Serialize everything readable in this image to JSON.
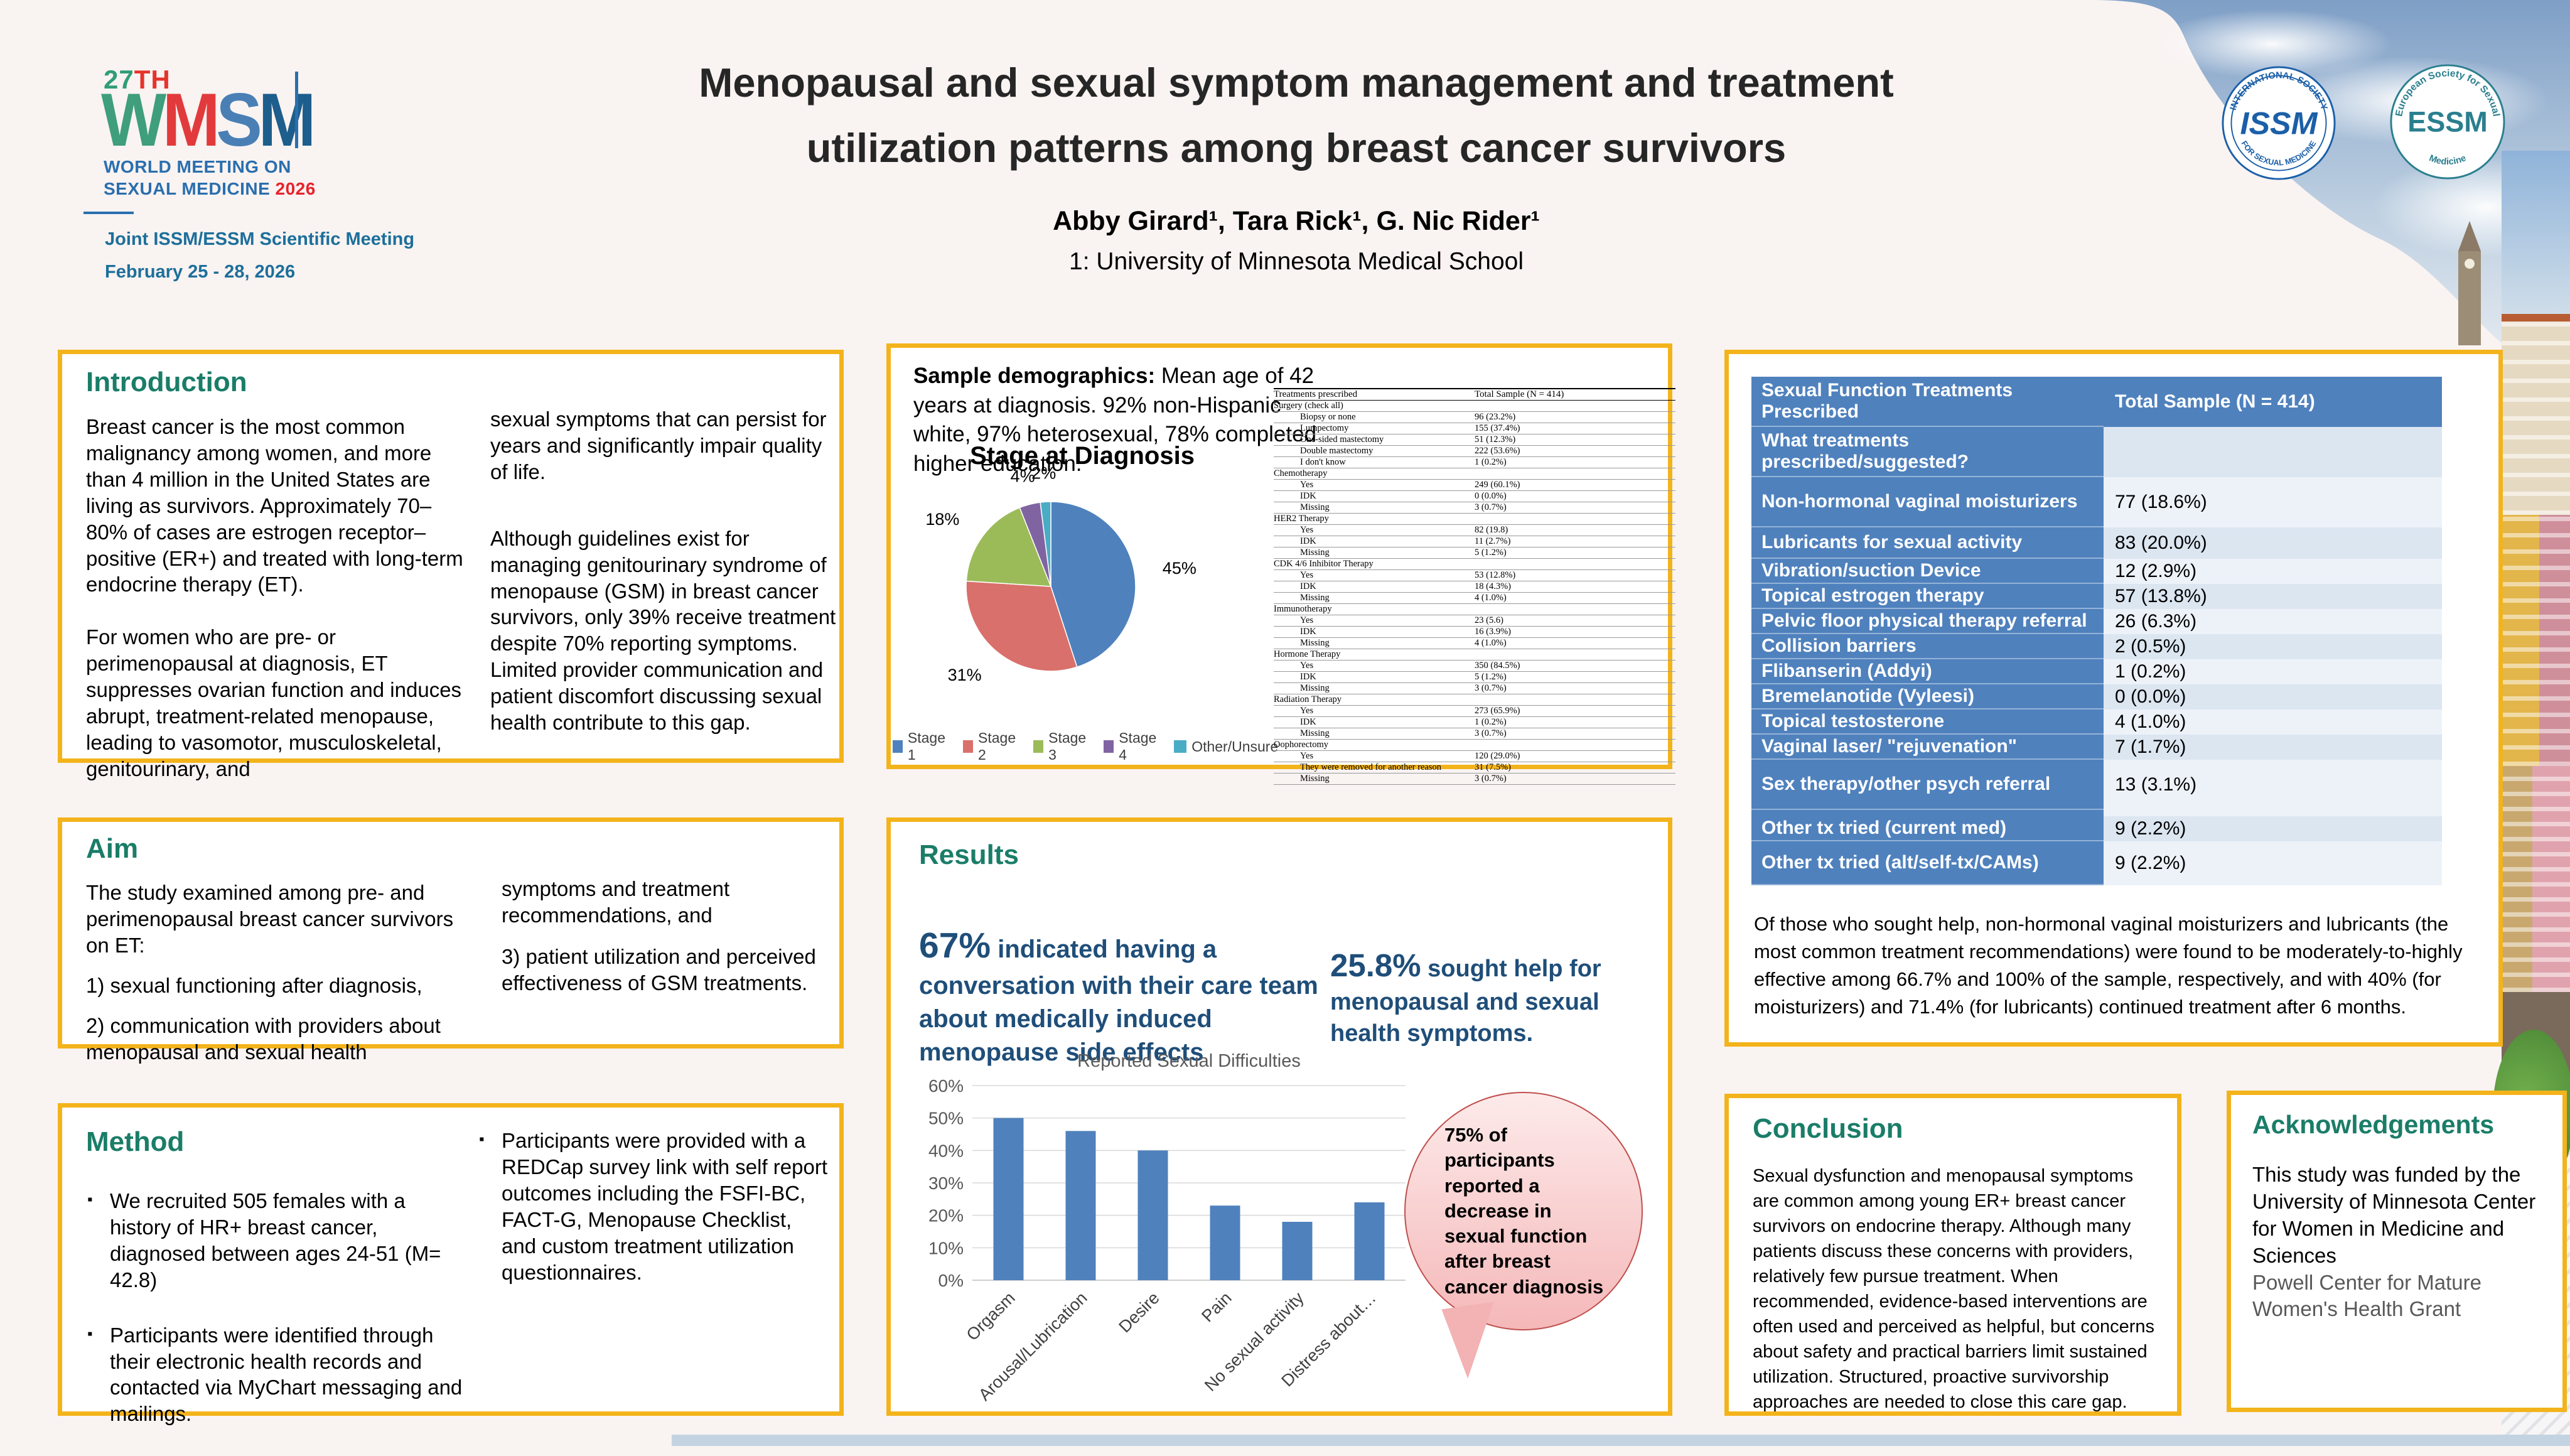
{
  "header": {
    "logo": {
      "edition_number": "27",
      "edition_suffix": "TH",
      "letters": [
        {
          "ch": "W",
          "color": "#3f9e7c"
        },
        {
          "ch": "M",
          "color": "#e23a3c"
        },
        {
          "ch": "S",
          "color": "#4a7fb5"
        },
        {
          "ch": "M",
          "color": "#1d5e8c"
        }
      ],
      "line1": "WORLD MEETING ON",
      "line2": "SEXUAL MEDICINE",
      "year": "2026",
      "meeting": "Joint ISSM/ESSM Scientific Meeting",
      "dates": "February 25 - 28, 2026"
    },
    "title_line1": "Menopausal and sexual symptom management and treatment",
    "title_line2": "utilization patterns among breast cancer survivors",
    "authors": "Abby Girard¹, Tara Rick¹, G. Nic Rider¹",
    "affiliation": "1: University of Minnesota Medical School",
    "issm_logo": {
      "arc_top": "INTERNATIONAL SOCIETY",
      "arc_bottom": "FOR SEXUAL MEDICINE",
      "center": "ISSM"
    },
    "essm_logo": {
      "arc_top": "European Society for Sexual",
      "arc_bottom": "Medicine",
      "center": "ESSM"
    }
  },
  "introduction": {
    "heading": "Introduction",
    "col1": [
      "Breast cancer is the most common malignancy among women, and more than 4 million in the United States are living as survivors. Approximately 70–80% of cases are estrogen receptor–positive (ER+) and treated with long-term endocrine therapy (ET).",
      "For women who are pre- or perimenopausal at diagnosis, ET suppresses ovarian function and induces abrupt, treatment-related menopause, leading to vasomotor, musculoskeletal, genitourinary, and"
    ],
    "col2": [
      "sexual symptoms that can persist for years and significantly impair quality of life.",
      "Although guidelines exist for managing genitourinary syndrome of menopause (GSM) in breast cancer survivors, only 39% receive treatment despite 70% reporting symptoms. Limited provider communication and patient discomfort discussing sexual health contribute to this gap."
    ]
  },
  "aim": {
    "heading": "Aim",
    "col1": [
      "The study examined among pre- and perimenopausal breast cancer survivors on ET:",
      "1)  sexual functioning after diagnosis,",
      "2) communication with providers about menopausal and sexual health"
    ],
    "col2": [
      "symptoms and treatment recommendations, and",
      "3) patient utilization and perceived effectiveness of GSM treatments."
    ]
  },
  "method": {
    "heading": "Method",
    "col1_bullets": [
      "We recruited 505 females with a history of HR+ breast cancer, diagnosed between ages 24-51 (M= 42.8)",
      "Participants were identified through their electronic health records and contacted via MyChart messaging and mailings."
    ],
    "col2_bullets": [
      "Participants were provided with a REDCap survey link with self report outcomes including the FSFI-BC, FACT-G, Menopause Checklist, and custom treatment utilization questionnaires."
    ]
  },
  "demographics": {
    "intro_bold": "Sample demographics:",
    "intro_rest": " Mean age of 42 years at diagnosis. 92% non-Hispanic white, 97% heterosexual, 78% completed higher education.",
    "table": {
      "headers": [
        "Treatments prescribed",
        "Total Sample (N = 414)"
      ],
      "rows": [
        {
          "label": "Surgery (check all)",
          "value": "",
          "indent": 0
        },
        {
          "label": "Biopsy or none",
          "value": "96 (23.2%)",
          "indent": 1
        },
        {
          "label": "Lumpectomy",
          "value": "155 (37.4%)",
          "indent": 1
        },
        {
          "label": "One-sided mastectomy",
          "value": "51 (12.3%)",
          "indent": 1
        },
        {
          "label": "Double mastectomy",
          "value": "222 (53.6%)",
          "indent": 1
        },
        {
          "label": "I don't know",
          "value": "1 (0.2%)",
          "indent": 1
        },
        {
          "label": "Chemotherapy",
          "value": "",
          "indent": 0
        },
        {
          "label": "Yes",
          "value": "249 (60.1%)",
          "indent": 1
        },
        {
          "label": "IDK",
          "value": "0 (0.0%)",
          "indent": 1
        },
        {
          "label": "Missing",
          "value": "3 (0.7%)",
          "indent": 1
        },
        {
          "label": "HER2 Therapy",
          "value": "",
          "indent": 0
        },
        {
          "label": "Yes",
          "value": "82 (19.8)",
          "indent": 1
        },
        {
          "label": "IDK",
          "value": "11 (2.7%)",
          "indent": 1
        },
        {
          "label": "Missing",
          "value": "5 (1.2%)",
          "indent": 1
        },
        {
          "label": "CDK 4/6 Inhibitor Therapy",
          "value": "",
          "indent": 0
        },
        {
          "label": "Yes",
          "value": "53 (12.8%)",
          "indent": 1
        },
        {
          "label": "IDK",
          "value": "18 (4.3%)",
          "indent": 1
        },
        {
          "label": "Missing",
          "value": "4 (1.0%)",
          "indent": 1
        },
        {
          "label": "Immunotherapy",
          "value": "",
          "indent": 0
        },
        {
          "label": "Yes",
          "value": "23 (5.6)",
          "indent": 1
        },
        {
          "label": "IDK",
          "value": "16 (3.9%)",
          "indent": 1
        },
        {
          "label": "Missing",
          "value": "4 (1.0%)",
          "indent": 1
        },
        {
          "label": "Hormone Therapy",
          "value": "",
          "indent": 0
        },
        {
          "label": "Yes",
          "value": "350 (84.5%)",
          "indent": 1
        },
        {
          "label": "IDK",
          "value": "5 (1.2%)",
          "indent": 1
        },
        {
          "label": "Missing",
          "value": "3 (0.7%)",
          "indent": 1
        },
        {
          "label": "Radiation Therapy",
          "value": "",
          "indent": 0
        },
        {
          "label": "Yes",
          "value": "273 (65.9%)",
          "indent": 1
        },
        {
          "label": "IDK",
          "value": "1 (0.2%)",
          "indent": 1
        },
        {
          "label": "Missing",
          "value": "3 (0.7%)",
          "indent": 1
        },
        {
          "label": "Oophorectomy",
          "value": "",
          "indent": 0
        },
        {
          "label": "Yes",
          "value": "120 (29.0%)",
          "indent": 1
        },
        {
          "label": "They were removed for another reason",
          "value": "31 (7.5%)",
          "indent": 1
        },
        {
          "label": "Missing",
          "value": "3 (0.7%)",
          "indent": 1
        }
      ]
    }
  },
  "results": {
    "heading": "Results",
    "stat1_value": "67%",
    "stat1_text": " indicated having a conversation with their care team about medically induced menopause side effects",
    "stat2_value": "25.8%",
    "stat2_text": " sought help for menopausal and sexual health symptoms.",
    "bubble_text": "75% of participants reported a decrease in sexual function after breast cancer diagnosis"
  },
  "treatments": {
    "table": {
      "headers": [
        "Sexual Function Treatments Prescribed",
        "Total Sample (N = 414)"
      ],
      "rows": [
        {
          "label": "What treatments prescribed/suggested?",
          "value": ""
        },
        {
          "label": "Non-hormonal vaginal moisturizers",
          "value": "77 (18.6%)"
        },
        {
          "label": "Lubricants for sexual activity",
          "value": "83 (20.0%)"
        },
        {
          "label": "Vibration/suction Device",
          "value": "12 (2.9%)"
        },
        {
          "label": "Topical estrogen therapy",
          "value": "57 (13.8%)"
        },
        {
          "label": "Pelvic floor physical therapy referral",
          "value": "26 (6.3%)"
        },
        {
          "label": "Collision barriers",
          "value": "2 (0.5%)"
        },
        {
          "label": "Flibanserin (Addyi)",
          "value": "1 (0.2%)"
        },
        {
          "label": "Bremelanotide (Vyleesi)",
          "value": "0 (0.0%)"
        },
        {
          "label": "Topical testosterone",
          "value": "4 (1.0%)"
        },
        {
          "label": "Vaginal laser/ \"rejuvenation\"",
          "value": "7 (1.7%)"
        },
        {
          "label": "Sex therapy/other psych referral",
          "value": "13 (3.1%)"
        },
        {
          "label": "Other tx tried (current med)",
          "value": "9 (2.2%)"
        },
        {
          "label": "Other tx tried (alt/self-tx/CAMs)",
          "value": "9 (2.2%)"
        }
      ]
    },
    "paragraph": "Of those who sought help, non-hormonal vaginal moisturizers and lubricants (the most common treatment recommendations) were found to be moderately-to-highly effective among 66.7% and 100% of the sample, respectively, and with 40% (for moisturizers) and 71.4% (for lubricants) continued treatment after 6 months."
  },
  "conclusion": {
    "heading": "Conclusion",
    "body": "Sexual dysfunction and menopausal symptoms are common among young ER+ breast cancer survivors on endocrine therapy. Although many patients discuss these concerns with providers, relatively few pursue treatment. When recommended, evidence-based interventions are often used and perceived as helpful, but concerns about safety and practical barriers limit sustained utilization. Structured, proactive survivorship approaches are needed to close this care gap."
  },
  "acknowledgements": {
    "heading": "Acknowledgements",
    "body_black": "This study was funded by the University of Minnesota Center for Women in Medicine and Sciences",
    "body_gray": "Powell Center for Mature Women's Health Grant"
  },
  "colors": {
    "accent_gold": "#F3B31B",
    "heading_green": "#1A7D68",
    "navy": "#1F4E79",
    "table_blue": "#4F81BD",
    "table_light": "#DCE6F1",
    "table_lighter": "#EDF2F9"
  },
  "chart_data": [
    {
      "type": "pie",
      "title": "Stage at Diagnosis",
      "labels": [
        "Stage 1",
        "Stage 2",
        "Stage 3",
        "Stage 4",
        "Other/Unsure"
      ],
      "values": [
        45,
        31,
        18,
        4,
        2
      ],
      "value_labels": [
        "45%",
        "31%",
        "18%",
        "4%",
        "2%"
      ],
      "colors": [
        "#4F81BD",
        "#D9706B",
        "#9BBB59",
        "#8064A2",
        "#4BACC6"
      ],
      "legend_position": "bottom"
    },
    {
      "type": "bar",
      "title": "Reported Sexual Difficulties",
      "categories": [
        "Orgasm",
        "Arousal/Lubrication",
        "Desire",
        "Pain",
        "No sexual activity",
        "Distress about…"
      ],
      "values": [
        50,
        46,
        40,
        23,
        18,
        24
      ],
      "unit": "%",
      "xlabel": "",
      "ylabel": "",
      "ylim": [
        0,
        60
      ],
      "ytick_step": 10,
      "bar_color": "#4F81BD",
      "grid": true,
      "legend_position": "none"
    }
  ]
}
